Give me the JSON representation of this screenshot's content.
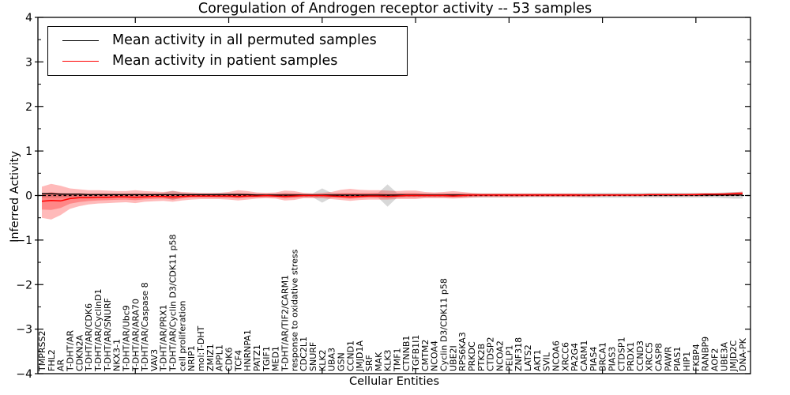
{
  "chart_data": {
    "type": "line",
    "title": "Coregulation of Androgen receptor activity -- 53 samples",
    "xlabel": "Cellular Entities",
    "ylabel": "Inferred Activity",
    "ylim": [
      -4,
      4
    ],
    "yticks": [
      4,
      3,
      2,
      1,
      0,
      -1,
      -2,
      -3,
      -4
    ],
    "x_major_tick_every": 10,
    "grid": false,
    "legend_position": "upper left",
    "zero_line": {
      "style": "dashed",
      "color": "#000000",
      "y": 0
    },
    "categories": [
      "TMPRSS2",
      "FHL2",
      "AR",
      "T-DHT/AR",
      "CDKN2A",
      "T-DHT/AR/CDK6",
      "T-DHT/AR/CyclinD1",
      "T-DHT/AR/SNURF",
      "NKX3-1",
      "T-DHT/AR/Ubc9",
      "T-DHT/AR/ARA70",
      "T-DHT/AR/Caspase 8",
      "VAV3",
      "T-DHT/AR/PRX1",
      "T-DHT/AR/Cyclin D3/CDK11 p58",
      "cell proliferation",
      "NRIP1",
      "mol:T-DHT",
      "ZMIZ1",
      "APPL1",
      "CDK6",
      "TCF4",
      "HNRNPA1",
      "PATZ1",
      "TGIF1",
      "MED1",
      "T-DHT/AR/TIF2/CARM1",
      "response to oxidative stress",
      "CDC2L1",
      "SNURF",
      "KLK2",
      "UBA3",
      "GSN",
      "CCND1",
      "JMJD1A",
      "SRF",
      "MAK",
      "KLK3",
      "TMF1",
      "CTNNB1",
      "TGFB1I1",
      "CMTM2",
      "NCOA4",
      "Cyclin D3/CDK11 p58",
      "UBE2I",
      "RPS6KA3",
      "PRKDC",
      "PTK2B",
      "CTDSP2",
      "NCOA2",
      "PELP1",
      "ZNF318",
      "LATS2",
      "AKT1",
      "SVIL",
      "NCOA6",
      "XRCC6",
      "PA2G4",
      "CARM1",
      "PIAS4",
      "BRCA1",
      "PIAS3",
      "CTDSP1",
      "PRDX1",
      "CCND3",
      "XRCC5",
      "CASP8",
      "PAWR",
      "PIAS1",
      "HIP1",
      "FKBP4",
      "RANBP9",
      "AOF2",
      "UBE3A",
      "JMJD2C",
      "DNA-PK"
    ],
    "series": [
      {
        "name": "Mean activity in all permuted samples",
        "color": "#000000",
        "band_color": "#999999",
        "band_opacity": 0.38,
        "values": [
          0.04,
          0.04,
          0.03,
          0.03,
          0.03,
          0.02,
          0.02,
          0.02,
          0.02,
          0.02,
          0.02,
          0.02,
          0.02,
          0.02,
          0.02,
          0.02,
          0.02,
          0.02,
          0.02,
          0.02,
          0.02,
          0.02,
          0.02,
          0.01,
          0.01,
          0.01,
          0.01,
          0.01,
          0.01,
          0.01,
          0.01,
          0.01,
          0.01,
          0.01,
          0.01,
          0.01,
          0.01,
          0.01,
          0.01,
          0.01,
          0.01,
          0.01,
          0.01,
          0.01,
          0.01,
          0.01,
          0.01,
          0.01,
          0.01,
          0.01,
          0.01,
          0.01,
          0.01,
          0.01,
          0.01,
          0.01,
          0.01,
          0.01,
          0.01,
          0.01,
          0.01,
          0.01,
          0.01,
          0.01,
          0.01,
          0.01,
          0.01,
          0.01,
          0.01,
          0.01,
          0.01,
          0.01,
          0.01,
          0.01,
          0.01,
          0.01
        ],
        "band_upper": [
          0.06,
          0.06,
          0.06,
          0.05,
          0.05,
          0.05,
          0.05,
          0.05,
          0.05,
          0.05,
          0.05,
          0.05,
          0.05,
          0.06,
          0.11,
          0.06,
          0.05,
          0.05,
          0.05,
          0.06,
          0.06,
          0.06,
          0.05,
          0.05,
          0.05,
          0.05,
          0.06,
          0.05,
          0.05,
          0.05,
          0.16,
          0.06,
          0.05,
          0.05,
          0.05,
          0.05,
          0.06,
          0.25,
          0.06,
          0.05,
          0.05,
          0.05,
          0.05,
          0.05,
          0.05,
          0.05,
          0.05,
          0.05,
          0.05,
          0.05,
          0.05,
          0.05,
          0.05,
          0.05,
          0.05,
          0.05,
          0.05,
          0.05,
          0.06,
          0.06,
          0.06,
          0.06,
          0.06,
          0.06,
          0.06,
          0.06,
          0.06,
          0.06,
          0.06,
          0.06,
          0.06,
          0.06,
          0.06,
          0.07,
          0.08,
          0.08
        ],
        "band_lower": [
          -0.05,
          -0.05,
          -0.05,
          -0.04,
          -0.04,
          -0.04,
          -0.04,
          -0.04,
          -0.04,
          -0.04,
          -0.04,
          -0.04,
          -0.04,
          -0.05,
          -0.1,
          -0.05,
          -0.04,
          -0.04,
          -0.04,
          -0.05,
          -0.05,
          -0.05,
          -0.04,
          -0.04,
          -0.04,
          -0.04,
          -0.05,
          -0.04,
          -0.04,
          -0.04,
          -0.16,
          -0.05,
          -0.04,
          -0.04,
          -0.04,
          -0.04,
          -0.05,
          -0.25,
          -0.05,
          -0.04,
          -0.04,
          -0.04,
          -0.04,
          -0.04,
          -0.04,
          -0.04,
          -0.04,
          -0.04,
          -0.04,
          -0.04,
          -0.04,
          -0.04,
          -0.04,
          -0.04,
          -0.04,
          -0.04,
          -0.04,
          -0.04,
          -0.05,
          -0.05,
          -0.05,
          -0.05,
          -0.05,
          -0.05,
          -0.05,
          -0.05,
          -0.05,
          -0.05,
          -0.05,
          -0.05,
          -0.05,
          -0.05,
          -0.05,
          -0.06,
          -0.07,
          -0.07
        ]
      },
      {
        "name": "Mean activity in patient samples",
        "color": "#ff0000",
        "band_color": "#ff0000",
        "band_opacity": 0.27,
        "has_inner_band": true,
        "values": [
          -0.13,
          -0.11,
          -0.12,
          -0.07,
          -0.05,
          -0.05,
          -0.04,
          -0.04,
          -0.03,
          -0.03,
          -0.04,
          -0.03,
          -0.02,
          -0.02,
          -0.03,
          -0.02,
          -0.01,
          -0.01,
          -0.01,
          -0.01,
          -0.01,
          -0.02,
          -0.01,
          -0.01,
          0.0,
          -0.01,
          -0.02,
          -0.01,
          0.0,
          0.0,
          0.0,
          -0.01,
          -0.02,
          -0.03,
          -0.02,
          -0.01,
          -0.01,
          -0.02,
          -0.01,
          0.0,
          0.0,
          0.0,
          0.0,
          0.0,
          -0.01,
          0.0,
          0.01,
          0.01,
          0.01,
          0.01,
          0.01,
          0.01,
          0.01,
          0.01,
          0.01,
          0.01,
          0.01,
          0.01,
          0.01,
          0.01,
          0.01,
          0.01,
          0.01,
          0.01,
          0.01,
          0.02,
          0.02,
          0.02,
          0.02,
          0.02,
          0.02,
          0.03,
          0.03,
          0.03,
          0.04,
          0.05
        ],
        "band_upper": [
          0.2,
          0.26,
          0.22,
          0.16,
          0.14,
          0.12,
          0.12,
          0.11,
          0.1,
          0.1,
          0.12,
          0.1,
          0.09,
          0.08,
          0.1,
          0.08,
          0.07,
          0.06,
          0.06,
          0.06,
          0.08,
          0.12,
          0.1,
          0.07,
          0.06,
          0.07,
          0.11,
          0.1,
          0.06,
          0.05,
          0.06,
          0.08,
          0.13,
          0.15,
          0.13,
          0.12,
          0.12,
          0.11,
          0.1,
          0.11,
          0.11,
          0.08,
          0.07,
          0.08,
          0.1,
          0.08,
          0.06,
          0.05,
          0.05,
          0.05,
          0.05,
          0.05,
          0.05,
          0.05,
          0.05,
          0.05,
          0.05,
          0.05,
          0.04,
          0.04,
          0.04,
          0.04,
          0.04,
          0.04,
          0.04,
          0.04,
          0.04,
          0.04,
          0.04,
          0.04,
          0.05,
          0.05,
          0.05,
          0.06,
          0.07,
          0.09
        ],
        "band_lower": [
          -0.5,
          -0.54,
          -0.44,
          -0.3,
          -0.24,
          -0.2,
          -0.18,
          -0.17,
          -0.16,
          -0.15,
          -0.17,
          -0.14,
          -0.13,
          -0.12,
          -0.14,
          -0.11,
          -0.09,
          -0.08,
          -0.08,
          -0.08,
          -0.09,
          -0.11,
          -0.09,
          -0.07,
          -0.06,
          -0.07,
          -0.11,
          -0.1,
          -0.06,
          -0.06,
          -0.06,
          -0.08,
          -0.1,
          -0.12,
          -0.1,
          -0.09,
          -0.09,
          -0.09,
          -0.08,
          -0.08,
          -0.08,
          -0.06,
          -0.06,
          -0.06,
          -0.07,
          -0.06,
          -0.05,
          -0.04,
          -0.04,
          -0.04,
          -0.04,
          -0.04,
          -0.03,
          -0.03,
          -0.03,
          -0.03,
          -0.03,
          -0.03,
          -0.03,
          -0.03,
          -0.02,
          -0.02,
          -0.02,
          -0.02,
          -0.02,
          -0.02,
          -0.02,
          -0.02,
          -0.02,
          -0.02,
          -0.02,
          -0.02,
          -0.01,
          -0.01,
          -0.01,
          0.0
        ]
      }
    ]
  }
}
